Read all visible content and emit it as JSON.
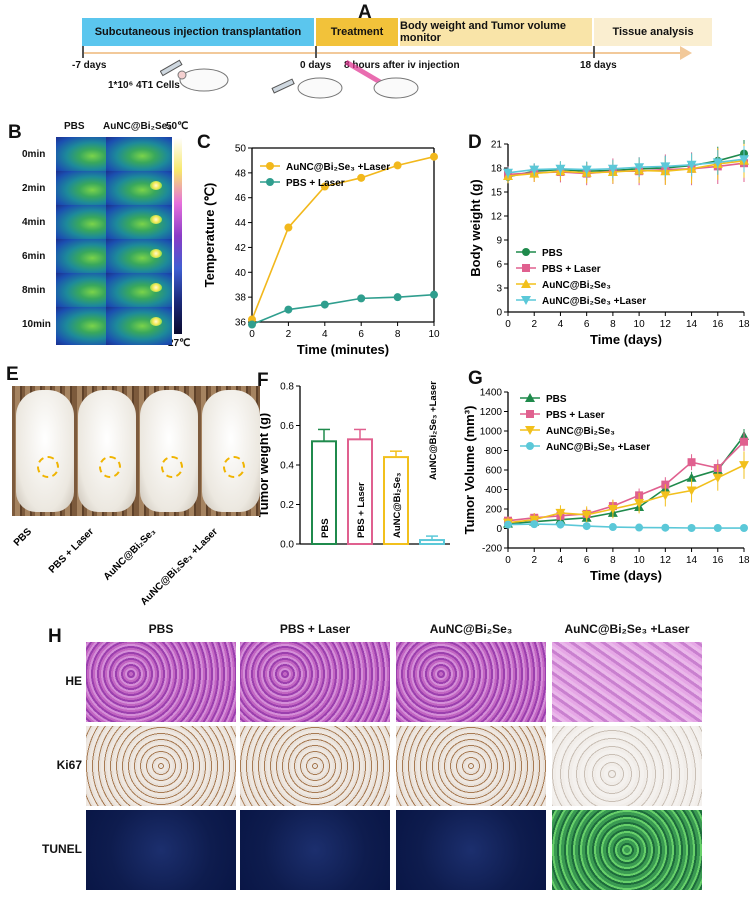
{
  "panels": {
    "a": "A",
    "b": "B",
    "c": "C",
    "d": "D",
    "e": "E",
    "f": "F",
    "g": "G",
    "h": "H"
  },
  "timeline": {
    "stages": [
      "Subcutaneous injection transplantation",
      "Treatment",
      "Body weight and Tumor volume monitor",
      "Tissue analysis"
    ],
    "colors": [
      "#5bc6ee",
      "#f2c23a",
      "#f9e4a8",
      "#faeed0"
    ],
    "day_labels": [
      "-7 days",
      "0 days",
      "18 days"
    ],
    "cells_label": "1*10⁶ 4T1 Cells",
    "post_injection": "8 hours after iv injection"
  },
  "thermal": {
    "col_labels": [
      "PBS",
      "AuNC@Bi₂Se₃"
    ],
    "row_labels": [
      "0min",
      "2min",
      "4min",
      "6min",
      "8min",
      "10min"
    ],
    "scale_max": "50℃",
    "scale_min": "27℃"
  },
  "temp_chart": {
    "chart_data": {
      "type": "line",
      "title": "",
      "xlabel": "Time (minutes)",
      "ylabel": "Temperature (℃)",
      "x": [
        0,
        2,
        4,
        6,
        8,
        10
      ],
      "xlim": [
        0,
        10
      ],
      "ylim": [
        36,
        50
      ],
      "yticks": [
        36,
        38,
        40,
        42,
        44,
        46,
        48,
        50
      ],
      "series": [
        {
          "name": "AuNC@Bi₂Se₃ +Laser",
          "values": [
            36.2,
            43.6,
            46.9,
            47.6,
            48.6,
            49.3
          ],
          "color": "#f2b81c"
        },
        {
          "name": "PBS + Laser",
          "values": [
            35.8,
            37.0,
            37.4,
            37.9,
            38.0,
            38.2
          ],
          "color": "#2f9e8e"
        }
      ]
    }
  },
  "body_weight": {
    "chart_data": {
      "type": "line",
      "title": "",
      "xlabel": "Time (days)",
      "ylabel": "Body weight (g)",
      "x": [
        0,
        2,
        4,
        6,
        8,
        10,
        12,
        14,
        16,
        18
      ],
      "xlim": [
        0,
        18
      ],
      "ylim": [
        0,
        21
      ],
      "yticks": [
        0,
        3,
        6,
        9,
        12,
        15,
        18,
        21
      ],
      "series": [
        {
          "name": "PBS",
          "values": [
            16.9,
            17.6,
            17.8,
            17.6,
            17.7,
            17.9,
            18.0,
            18.3,
            18.9,
            19.8
          ],
          "color": "#1f8a4c",
          "marker": "circle"
        },
        {
          "name": "PBS + Laser",
          "values": [
            17.2,
            17.4,
            17.5,
            17.3,
            17.6,
            17.6,
            17.8,
            17.9,
            18.2,
            18.6
          ],
          "color": "#e0608f",
          "marker": "square"
        },
        {
          "name": "AuNC@Bi₂Se₃",
          "values": [
            17.0,
            17.3,
            17.6,
            17.4,
            17.5,
            17.7,
            17.6,
            17.9,
            18.5,
            18.9
          ],
          "color": "#f2c01c",
          "marker": "triangle"
        },
        {
          "name": "AuNC@Bi₂Se₃ +Laser",
          "values": [
            17.4,
            17.8,
            17.9,
            17.8,
            17.9,
            18.1,
            18.2,
            18.4,
            18.7,
            19.1
          ],
          "color": "#5bc8d8",
          "marker": "triangle-down"
        }
      ]
    }
  },
  "photos": {
    "labels": [
      "PBS",
      "PBS + Laser",
      "AuNC@Bi₂Se₃",
      "AuNC@Bi₂Se₃ +Laser"
    ]
  },
  "tumor_weight": {
    "chart_data": {
      "type": "bar",
      "title": "",
      "ylabel": "Tumor weight (g)",
      "xlabel": "",
      "categories": [
        "PBS",
        "PBS + Laser",
        "AuNC@Bi₂Se₃",
        "AuNC@Bi₂Se₃ +Laser"
      ],
      "values": [
        0.52,
        0.53,
        0.44,
        0.02
      ],
      "errors": [
        0.06,
        0.05,
        0.03,
        0.02
      ],
      "colors": [
        "#1f8a4c",
        "#e0608f",
        "#f2c01c",
        "#5bc8d8"
      ],
      "ylim": [
        0,
        0.8
      ],
      "yticks": [
        0.0,
        0.2,
        0.4,
        0.6,
        0.8
      ]
    }
  },
  "tumor_volume": {
    "chart_data": {
      "type": "line",
      "title": "",
      "xlabel": "Time (days)",
      "ylabel": "Tumor Volume (mm³)",
      "x": [
        0,
        2,
        4,
        6,
        8,
        10,
        12,
        14,
        16,
        18
      ],
      "xlim": [
        0,
        18
      ],
      "ylim": [
        -200,
        1400
      ],
      "yticks": [
        -200,
        0,
        200,
        400,
        600,
        800,
        1000,
        1200,
        1400
      ],
      "series": [
        {
          "name": "PBS",
          "values": [
            50,
            70,
            90,
            110,
            160,
            220,
            410,
            520,
            600,
            950
          ],
          "color": "#1f8a4c",
          "marker": "triangle"
        },
        {
          "name": "PBS + Laser",
          "values": [
            80,
            110,
            130,
            150,
            230,
            340,
            450,
            680,
            620,
            890
          ],
          "color": "#e0608f",
          "marker": "square"
        },
        {
          "name": "AuNC@Bi₂Se₃",
          "values": [
            60,
            90,
            160,
            140,
            200,
            260,
            340,
            390,
            520,
            650
          ],
          "color": "#f2c01c",
          "marker": "triangle-down"
        },
        {
          "name": "AuNC@Bi₂Se₃ +Laser",
          "values": [
            40,
            45,
            40,
            25,
            15,
            10,
            8,
            5,
            5,
            5
          ],
          "color": "#5bc8d8",
          "marker": "circle"
        }
      ]
    }
  },
  "histology": {
    "col_labels": [
      "PBS",
      "PBS + Laser",
      "AuNC@Bi₂Se₃",
      "AuNC@Bi₂Se₃ +Laser"
    ],
    "row_labels": [
      "HE",
      "Ki67",
      "TUNEL"
    ]
  }
}
